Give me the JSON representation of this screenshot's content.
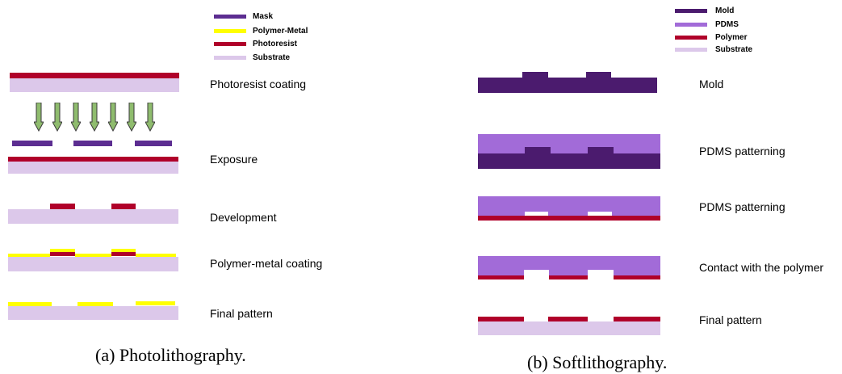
{
  "colors": {
    "mask": "#5c2d91",
    "polymer_metal": "#ffff00",
    "photoresist": "#b0002a",
    "substrate": "#dcc8ea",
    "mold": "#4b1b6e",
    "pdms": "#a26bd8",
    "polymer": "#b0002a",
    "arrow_fill": "#8fbc6e",
    "arrow_stroke": "#3a3a3a"
  },
  "photolithography": {
    "legend": {
      "mask": "Mask",
      "polymer_metal": "Polymer-Metal",
      "photoresist": "Photoresist",
      "substrate": "Substrate"
    },
    "steps": {
      "coating": "Photoresist coating",
      "exposure": "Exposure",
      "development": "Development",
      "metal_coating": "Polymer-metal coating",
      "final": "Final pattern"
    },
    "caption": "(a) Photolithography."
  },
  "softlithography": {
    "legend": {
      "mold": "Mold",
      "pdms": "PDMS",
      "polymer": "Polymer",
      "substrate": "Substrate"
    },
    "steps": {
      "mold": "Mold",
      "pdms_patterning_1": "PDMS patterning",
      "pdms_patterning_2": "PDMS patterning",
      "contact": "Contact with the polymer",
      "final": "Final pattern"
    },
    "caption": "(b) Softlithography."
  }
}
